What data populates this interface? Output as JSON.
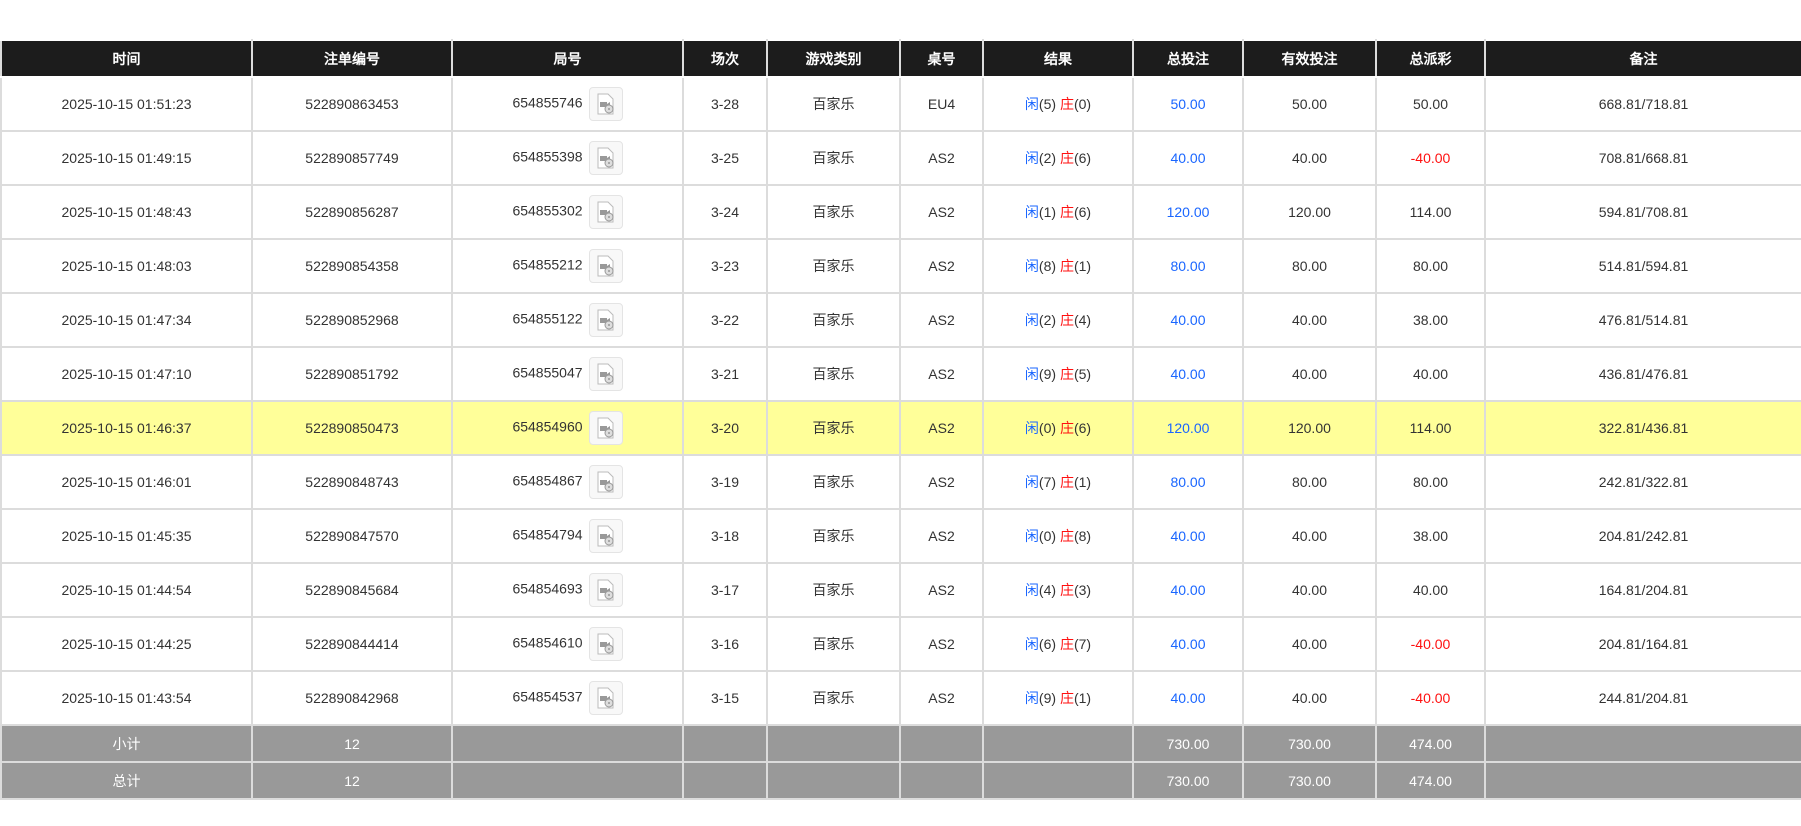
{
  "headers": [
    "时间",
    "注单编号",
    "局号",
    "场次",
    "游戏类别",
    "桌号",
    "结果",
    "总投注",
    "有效投注",
    "总派彩",
    "备注"
  ],
  "result_labels": {
    "player": "闲",
    "banker": "庄"
  },
  "colors": {
    "header_bg": "#1c1c1c",
    "highlight": "#ffff99",
    "blue": "#1a66ff",
    "red": "#ff1010",
    "summary_bg": "#999999"
  },
  "rows": [
    {
      "time": "2025-10-15 01:51:23",
      "bet_id": "522890863453",
      "round": "654855746",
      "shoe": "3-28",
      "game": "百家乐",
      "table": "EU4",
      "player": "(5)",
      "banker": "(0)",
      "total_bet": "50.00",
      "valid_bet": "50.00",
      "payout": "50.00",
      "payout_negative": false,
      "note": "668.81/718.81",
      "highlighted": false
    },
    {
      "time": "2025-10-15 01:49:15",
      "bet_id": "522890857749",
      "round": "654855398",
      "shoe": "3-25",
      "game": "百家乐",
      "table": "AS2",
      "player": "(2)",
      "banker": "(6)",
      "total_bet": "40.00",
      "valid_bet": "40.00",
      "payout": "-40.00",
      "payout_negative": true,
      "note": "708.81/668.81",
      "highlighted": false
    },
    {
      "time": "2025-10-15 01:48:43",
      "bet_id": "522890856287",
      "round": "654855302",
      "shoe": "3-24",
      "game": "百家乐",
      "table": "AS2",
      "player": "(1)",
      "banker": "(6)",
      "total_bet": "120.00",
      "valid_bet": "120.00",
      "payout": "114.00",
      "payout_negative": false,
      "note": "594.81/708.81",
      "highlighted": false
    },
    {
      "time": "2025-10-15 01:48:03",
      "bet_id": "522890854358",
      "round": "654855212",
      "shoe": "3-23",
      "game": "百家乐",
      "table": "AS2",
      "player": "(8)",
      "banker": "(1)",
      "total_bet": "80.00",
      "valid_bet": "80.00",
      "payout": "80.00",
      "payout_negative": false,
      "note": "514.81/594.81",
      "highlighted": false
    },
    {
      "time": "2025-10-15 01:47:34",
      "bet_id": "522890852968",
      "round": "654855122",
      "shoe": "3-22",
      "game": "百家乐",
      "table": "AS2",
      "player": "(2)",
      "banker": "(4)",
      "total_bet": "40.00",
      "valid_bet": "40.00",
      "payout": "38.00",
      "payout_negative": false,
      "note": "476.81/514.81",
      "highlighted": false
    },
    {
      "time": "2025-10-15 01:47:10",
      "bet_id": "522890851792",
      "round": "654855047",
      "shoe": "3-21",
      "game": "百家乐",
      "table": "AS2",
      "player": "(9)",
      "banker": "(5)",
      "total_bet": "40.00",
      "valid_bet": "40.00",
      "payout": "40.00",
      "payout_negative": false,
      "note": "436.81/476.81",
      "highlighted": false
    },
    {
      "time": "2025-10-15 01:46:37",
      "bet_id": "522890850473",
      "round": "654854960",
      "shoe": "3-20",
      "game": "百家乐",
      "table": "AS2",
      "player": "(0)",
      "banker": "(6)",
      "total_bet": "120.00",
      "valid_bet": "120.00",
      "payout": "114.00",
      "payout_negative": false,
      "note": "322.81/436.81",
      "highlighted": true
    },
    {
      "time": "2025-10-15 01:46:01",
      "bet_id": "522890848743",
      "round": "654854867",
      "shoe": "3-19",
      "game": "百家乐",
      "table": "AS2",
      "player": "(7)",
      "banker": "(1)",
      "total_bet": "80.00",
      "valid_bet": "80.00",
      "payout": "80.00",
      "payout_negative": false,
      "note": "242.81/322.81",
      "highlighted": false
    },
    {
      "time": "2025-10-15 01:45:35",
      "bet_id": "522890847570",
      "round": "654854794",
      "shoe": "3-18",
      "game": "百家乐",
      "table": "AS2",
      "player": "(0)",
      "banker": "(8)",
      "total_bet": "40.00",
      "valid_bet": "40.00",
      "payout": "38.00",
      "payout_negative": false,
      "note": "204.81/242.81",
      "highlighted": false
    },
    {
      "time": "2025-10-15 01:44:54",
      "bet_id": "522890845684",
      "round": "654854693",
      "shoe": "3-17",
      "game": "百家乐",
      "table": "AS2",
      "player": "(4)",
      "banker": "(3)",
      "total_bet": "40.00",
      "valid_bet": "40.00",
      "payout": "40.00",
      "payout_negative": false,
      "note": "164.81/204.81",
      "highlighted": false
    },
    {
      "time": "2025-10-15 01:44:25",
      "bet_id": "522890844414",
      "round": "654854610",
      "shoe": "3-16",
      "game": "百家乐",
      "table": "AS2",
      "player": "(6)",
      "banker": "(7)",
      "total_bet": "40.00",
      "valid_bet": "40.00",
      "payout": "-40.00",
      "payout_negative": true,
      "note": "204.81/164.81",
      "highlighted": false
    },
    {
      "time": "2025-10-15 01:43:54",
      "bet_id": "522890842968",
      "round": "654854537",
      "shoe": "3-15",
      "game": "百家乐",
      "table": "AS2",
      "player": "(9)",
      "banker": "(1)",
      "total_bet": "40.00",
      "valid_bet": "40.00",
      "payout": "-40.00",
      "payout_negative": true,
      "note": "244.81/204.81",
      "highlighted": false
    }
  ],
  "summary": [
    {
      "label": "小计",
      "count": "12",
      "total_bet": "730.00",
      "valid_bet": "730.00",
      "payout": "474.00"
    },
    {
      "label": "总计",
      "count": "12",
      "total_bet": "730.00",
      "valid_bet": "730.00",
      "payout": "474.00"
    }
  ]
}
